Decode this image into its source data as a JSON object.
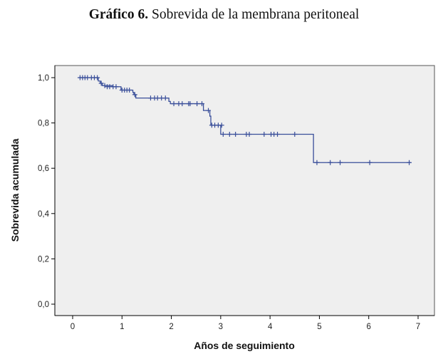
{
  "figure": {
    "title_bold": "Gráfico 6.",
    "title_rest": " Sobrevida de la membrana peritoneal"
  },
  "colors": {
    "plot_background": "#efefef",
    "line": "#3a4f9a",
    "axis": "#000000"
  },
  "chart_data": {
    "type": "line",
    "subtype": "kaplan-meier-step",
    "xlabel": "Años de seguimiento",
    "ylabel": "Sobrevida acumulada",
    "xlim": [
      0,
      7
    ],
    "ylim": [
      0,
      1.0
    ],
    "x_ticks": [
      "0",
      "1",
      "2",
      "3",
      "4",
      "5",
      "6",
      "7"
    ],
    "y_ticks": [
      "0,0",
      "0,2",
      "0,4",
      "0,6",
      "0,8",
      "1,0"
    ],
    "grid": false,
    "series": [
      {
        "steps": [
          [
            0.12,
            1.0
          ],
          [
            0.52,
            0.985
          ],
          [
            0.56,
            0.975
          ],
          [
            0.6,
            0.965
          ],
          [
            0.8,
            0.96
          ],
          [
            0.98,
            0.945
          ],
          [
            1.22,
            0.935
          ],
          [
            1.24,
            0.925
          ],
          [
            1.28,
            0.91
          ],
          [
            1.95,
            0.895
          ],
          [
            1.98,
            0.885
          ],
          [
            2.65,
            0.855
          ],
          [
            2.78,
            0.83
          ],
          [
            2.8,
            0.79
          ],
          [
            3.0,
            0.75
          ],
          [
            4.88,
            0.625
          ],
          [
            6.85,
            0.625
          ]
        ],
        "censored": [
          [
            0.15,
            1.0
          ],
          [
            0.2,
            1.0
          ],
          [
            0.25,
            1.0
          ],
          [
            0.3,
            1.0
          ],
          [
            0.38,
            1.0
          ],
          [
            0.44,
            1.0
          ],
          [
            0.5,
            1.0
          ],
          [
            0.58,
            0.975
          ],
          [
            0.65,
            0.965
          ],
          [
            0.7,
            0.96
          ],
          [
            0.75,
            0.96
          ],
          [
            0.82,
            0.96
          ],
          [
            0.88,
            0.96
          ],
          [
            1.0,
            0.945
          ],
          [
            1.05,
            0.945
          ],
          [
            1.1,
            0.945
          ],
          [
            1.15,
            0.945
          ],
          [
            1.26,
            0.925
          ],
          [
            1.58,
            0.91
          ],
          [
            1.66,
            0.91
          ],
          [
            1.72,
            0.91
          ],
          [
            1.8,
            0.91
          ],
          [
            1.88,
            0.91
          ],
          [
            2.05,
            0.885
          ],
          [
            2.15,
            0.885
          ],
          [
            2.22,
            0.885
          ],
          [
            2.35,
            0.885
          ],
          [
            2.38,
            0.885
          ],
          [
            2.52,
            0.885
          ],
          [
            2.62,
            0.885
          ],
          [
            2.75,
            0.855
          ],
          [
            2.82,
            0.79
          ],
          [
            2.88,
            0.79
          ],
          [
            2.95,
            0.79
          ],
          [
            3.02,
            0.79
          ],
          [
            3.05,
            0.75
          ],
          [
            3.18,
            0.75
          ],
          [
            3.3,
            0.75
          ],
          [
            3.52,
            0.75
          ],
          [
            3.58,
            0.75
          ],
          [
            3.88,
            0.75
          ],
          [
            4.02,
            0.75
          ],
          [
            4.08,
            0.75
          ],
          [
            4.15,
            0.75
          ],
          [
            4.5,
            0.75
          ],
          [
            4.95,
            0.625
          ],
          [
            5.22,
            0.625
          ],
          [
            5.42,
            0.625
          ],
          [
            6.02,
            0.625
          ],
          [
            6.82,
            0.625
          ]
        ]
      }
    ]
  }
}
